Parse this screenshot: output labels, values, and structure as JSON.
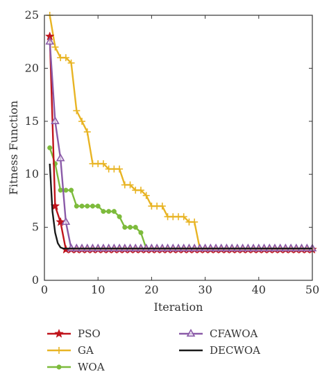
{
  "chart_data": {
    "type": "line",
    "title": "",
    "xlabel": "Iteration",
    "ylabel": "Fitness Function",
    "xlim": [
      0,
      50
    ],
    "ylim": [
      0,
      25
    ],
    "xticks": [
      0,
      10,
      20,
      30,
      40,
      50
    ],
    "yticks": [
      0,
      5,
      10,
      15,
      20,
      25
    ],
    "grid": false,
    "legend_position": "bottom",
    "series": [
      {
        "name": "PSO",
        "color": "#c0141c",
        "marker": "star",
        "x": [
          1,
          2,
          3,
          4,
          5,
          6,
          7,
          8,
          9,
          10,
          11,
          12,
          13,
          14,
          15,
          16,
          17,
          18,
          19,
          20,
          21,
          22,
          23,
          24,
          25,
          26,
          27,
          28,
          29,
          30,
          31,
          32,
          33,
          34,
          35,
          36,
          37,
          38,
          39,
          40,
          41,
          42,
          43,
          44,
          45,
          46,
          47,
          48,
          49,
          50
        ],
        "y": [
          23,
          7,
          5.5,
          2.9,
          2.9,
          2.9,
          2.9,
          2.9,
          2.9,
          2.9,
          2.9,
          2.9,
          2.9,
          2.9,
          2.9,
          2.9,
          2.9,
          2.9,
          2.9,
          2.9,
          2.9,
          2.9,
          2.9,
          2.9,
          2.9,
          2.9,
          2.9,
          2.9,
          2.9,
          2.9,
          2.9,
          2.9,
          2.9,
          2.9,
          2.9,
          2.9,
          2.9,
          2.9,
          2.9,
          2.9,
          2.9,
          2.9,
          2.9,
          2.9,
          2.9,
          2.9,
          2.9,
          2.9,
          2.9,
          2.9
        ]
      },
      {
        "name": "GA",
        "color": "#e8b424",
        "marker": "plus",
        "x": [
          1,
          2,
          3,
          4,
          5,
          6,
          7,
          8,
          9,
          10,
          11,
          12,
          13,
          14,
          15,
          16,
          17,
          18,
          19,
          20,
          21,
          22,
          23,
          24,
          25,
          26,
          27,
          28,
          29,
          30,
          31,
          32,
          33,
          34,
          35,
          36,
          37,
          38,
          39,
          40,
          41,
          42,
          43,
          44,
          45,
          46,
          47,
          48,
          49,
          50
        ],
        "y": [
          25,
          22,
          21,
          21,
          20.5,
          16,
          15,
          14,
          11,
          11,
          11,
          10.5,
          10.5,
          10.5,
          9,
          9,
          8.5,
          8.5,
          8,
          7,
          7,
          7,
          6,
          6,
          6,
          6,
          5.5,
          5.5,
          3,
          3,
          3,
          3,
          3,
          3,
          3,
          3,
          3,
          3,
          3,
          3,
          3,
          3,
          3,
          3,
          3,
          3,
          3,
          3,
          3,
          3
        ]
      },
      {
        "name": "WOA",
        "color": "#7dbb3c",
        "marker": "circle",
        "x": [
          1,
          2,
          3,
          4,
          5,
          6,
          7,
          8,
          9,
          10,
          11,
          12,
          13,
          14,
          15,
          16,
          17,
          18,
          19,
          20,
          21,
          22,
          23,
          24,
          25,
          26,
          27,
          28,
          29,
          30,
          31,
          32,
          33,
          34,
          35,
          36,
          37,
          38,
          39,
          40,
          41,
          42,
          43,
          44,
          45,
          46,
          47,
          48,
          49,
          50
        ],
        "y": [
          12.5,
          11,
          8.5,
          8.5,
          8.5,
          7,
          7,
          7,
          7,
          7,
          6.5,
          6.5,
          6.5,
          6,
          5,
          5,
          5,
          4.5,
          3,
          3,
          3,
          3,
          3,
          3,
          3,
          3,
          3,
          3,
          3,
          3,
          3,
          3,
          3,
          3,
          3,
          3,
          3,
          3,
          3,
          3,
          3,
          3,
          3,
          3,
          3,
          3,
          3,
          3,
          3,
          3
        ]
      },
      {
        "name": "CFAWOA",
        "color": "#8a5aa8",
        "marker": "triangle",
        "x": [
          1,
          2,
          3,
          4,
          5,
          6,
          7,
          8,
          9,
          10,
          11,
          12,
          13,
          14,
          15,
          16,
          17,
          18,
          19,
          20,
          21,
          22,
          23,
          24,
          25,
          26,
          27,
          28,
          29,
          30,
          31,
          32,
          33,
          34,
          35,
          36,
          37,
          38,
          39,
          40,
          41,
          42,
          43,
          44,
          45,
          46,
          47,
          48,
          49,
          50
        ],
        "y": [
          22.5,
          15,
          11.5,
          5.5,
          3,
          3,
          3,
          3,
          3,
          3,
          3,
          3,
          3,
          3,
          3,
          3,
          3,
          3,
          3,
          3,
          3,
          3,
          3,
          3,
          3,
          3,
          3,
          3,
          3,
          3,
          3,
          3,
          3,
          3,
          3,
          3,
          3,
          3,
          3,
          3,
          3,
          3,
          3,
          3,
          3,
          3,
          3,
          3,
          3,
          3
        ]
      },
      {
        "name": "DECWOA",
        "color": "#1a1a1a",
        "marker": "none",
        "x": [
          1,
          1.5,
          2,
          2.5,
          3,
          3.5,
          4,
          5,
          10,
          20,
          30,
          40,
          50
        ],
        "y": [
          11,
          6.5,
          4.5,
          3.5,
          3.1,
          3,
          3,
          3,
          3,
          3,
          3,
          3,
          3
        ]
      }
    ]
  }
}
